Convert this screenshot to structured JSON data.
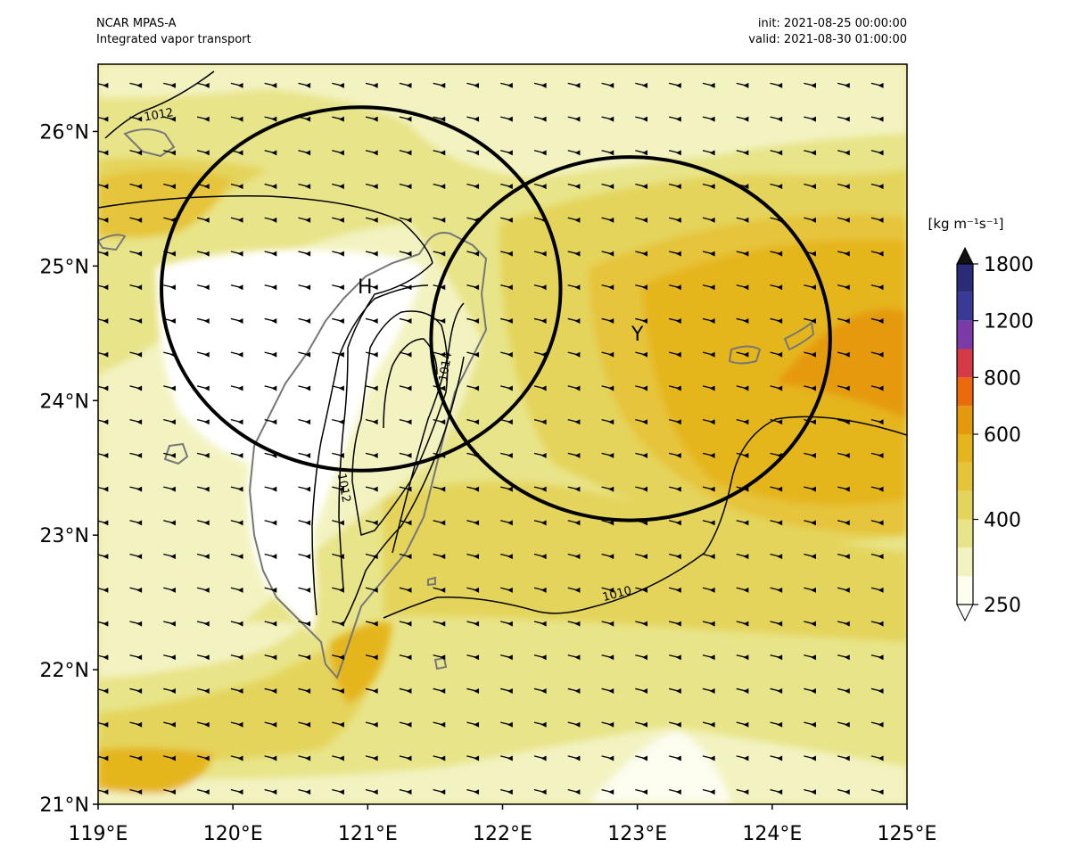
{
  "header": {
    "model": "NCAR MPAS-A",
    "field": "Integrated vapor transport",
    "init": "init: 2021-08-25 00:00:00",
    "valid": "valid: 2021-08-30 01:00:00"
  },
  "map": {
    "lon_range": [
      119,
      125
    ],
    "lat_range": [
      21,
      26.5
    ],
    "x_ticks": [
      {
        "value": 119,
        "label": "119°E"
      },
      {
        "value": 120,
        "label": "120°E"
      },
      {
        "value": 121,
        "label": "121°E"
      },
      {
        "value": 122,
        "label": "122°E"
      },
      {
        "value": 123,
        "label": "123°E"
      },
      {
        "value": 124,
        "label": "124°E"
      },
      {
        "value": 125,
        "label": "125°E"
      }
    ],
    "y_ticks": [
      {
        "value": 21,
        "label": "21°N"
      },
      {
        "value": 22,
        "label": "22°N"
      },
      {
        "value": 23,
        "label": "23°N"
      },
      {
        "value": 24,
        "label": "24°N"
      },
      {
        "value": 25,
        "label": "25°N"
      },
      {
        "value": 26,
        "label": "26°N"
      }
    ],
    "centers": [
      {
        "label": "H",
        "lon": 120.98,
        "lat": 24.85
      },
      {
        "label": "Y",
        "lon": 123.0,
        "lat": 24.5
      }
    ],
    "circles": [
      {
        "lon": 120.95,
        "lat": 24.83,
        "radius_deg_lon": 1.48,
        "radius_deg_lat": 1.35
      },
      {
        "lon": 122.95,
        "lat": 24.46,
        "radius_deg_lon": 1.48,
        "radius_deg_lat": 1.35
      }
    ],
    "pressure_labels": [
      {
        "text": "1012",
        "lon": 119.45,
        "lat": 26.12
      },
      {
        "text": "1014",
        "lon": 121.58,
        "lat": 24.25
      },
      {
        "text": "1012",
        "lon": 120.82,
        "lat": 23.35
      },
      {
        "text": "1010",
        "lon": 122.85,
        "lat": 22.56
      }
    ],
    "wind_dir_deg": 195
  },
  "colorbar": {
    "units": "[kg m⁻¹s⁻¹]",
    "levels": [
      250,
      300,
      350,
      400,
      450,
      500,
      600,
      700,
      800,
      1000,
      1200,
      1400,
      1800
    ],
    "colors": [
      "#fdfdf0",
      "#f3f3c2",
      "#e8e489",
      "#e4d45c",
      "#e6c43a",
      "#e5b51e",
      "#e59a0e",
      "#ea6a0c",
      "#d53a47",
      "#7b3aa6",
      "#3a3a96",
      "#2b2b78"
    ],
    "tick_labels": [
      {
        "value": 250,
        "label": "250"
      },
      {
        "value": 400,
        "label": "400"
      },
      {
        "value": 600,
        "label": "600"
      },
      {
        "value": 800,
        "label": "800"
      },
      {
        "value": 1200,
        "label": "1200"
      },
      {
        "value": 1800,
        "label": "1800"
      }
    ],
    "extend": "both",
    "over_color": "#111111",
    "under_color": "#ffffff"
  }
}
